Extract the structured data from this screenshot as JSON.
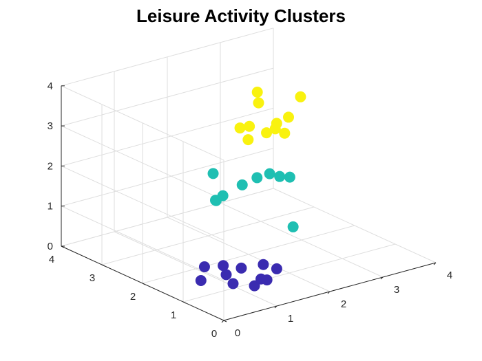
{
  "chart_data": {
    "type": "scatter",
    "title": "Leisure Activity Clusters",
    "xlabel": "",
    "ylabel": "",
    "zlabel": "",
    "xlim": [
      0,
      4
    ],
    "ylim": [
      0,
      4
    ],
    "zlim": [
      0,
      4
    ],
    "x_ticks": [
      "0",
      "1",
      "2",
      "3",
      "4"
    ],
    "y_ticks": [
      "0",
      "1",
      "2",
      "3",
      "4"
    ],
    "z_ticks": [
      "0",
      "1",
      "2",
      "3",
      "4"
    ],
    "grid": true,
    "view": "3d",
    "series": [
      {
        "color": "#3a2bb0",
        "points": [
          [
            0.85,
            1.05,
            0.35
          ],
          [
            1.1,
            1.45,
            0.3
          ],
          [
            0.9,
            1.65,
            0.25
          ],
          [
            1.25,
            1.2,
            0.3
          ],
          [
            1.0,
            0.55,
            0.25
          ],
          [
            1.55,
            1.05,
            0.35
          ],
          [
            1.2,
            0.65,
            0.3
          ],
          [
            0.75,
            0.75,
            0.3
          ],
          [
            1.65,
            0.85,
            0.3
          ],
          [
            1.35,
            0.7,
            0.2
          ],
          [
            0.45,
            1.15,
            0.3
          ]
        ]
      },
      {
        "color": "#1fbfb2",
        "points": [
          [
            1.9,
            1.35,
            2.35
          ],
          [
            2.05,
            1.3,
            2.25
          ],
          [
            2.05,
            1.05,
            2.35
          ],
          [
            1.7,
            1.4,
            2.3
          ],
          [
            1.65,
            1.7,
            2.0
          ],
          [
            1.6,
            2.35,
            2.0
          ],
          [
            1.4,
            1.85,
            1.75
          ],
          [
            1.3,
            1.9,
            1.65
          ],
          [
            1.35,
            1.95,
            1.6
          ],
          [
            2.15,
            1.1,
            1.05
          ]
        ]
      },
      {
        "color": "#f9f20f",
        "points": [
          [
            2.05,
            1.85,
            4.1
          ],
          [
            2.15,
            1.95,
            3.75
          ],
          [
            2.3,
            1.7,
            3.3
          ],
          [
            1.9,
            1.85,
            3.3
          ],
          [
            1.8,
            1.95,
            3.25
          ],
          [
            2.35,
            1.8,
            3.1
          ],
          [
            1.8,
            1.75,
            3.05
          ],
          [
            2.75,
            1.7,
            3.8
          ],
          [
            2.6,
            1.8,
            3.3
          ],
          [
            2.3,
            1.95,
            2.95
          ],
          [
            2.45,
            1.7,
            3.0
          ]
        ]
      }
    ]
  }
}
